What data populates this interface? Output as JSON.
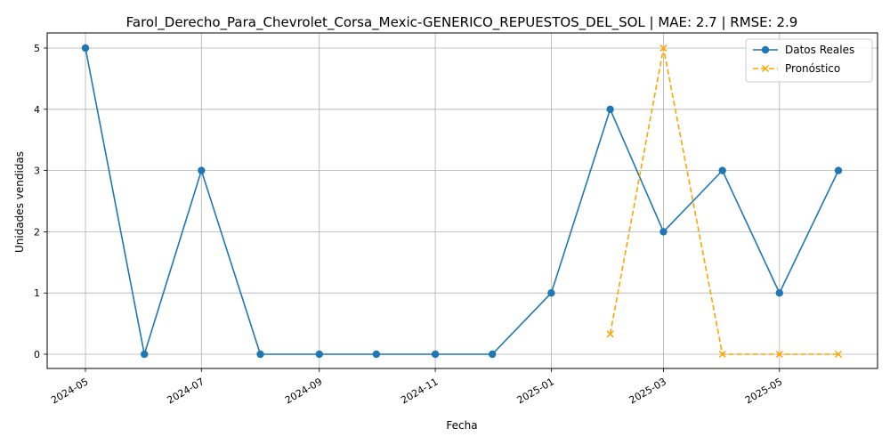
{
  "chart_data": {
    "type": "line",
    "title": "Farol_Derecho_Para_Chevrolet_Corsa_Mexic-GENERICO_REPUESTOS_DEL_SOL | MAE: 2.7 | RMSE: 2.9",
    "xlabel": "Fecha",
    "ylabel": "Unidades vendidas",
    "x_ticks": [
      "2024-05",
      "2024-07",
      "2024-09",
      "2024-11",
      "2025-01",
      "2025-03",
      "2025-05"
    ],
    "y_ticks": [
      0,
      1,
      2,
      3,
      4,
      5
    ],
    "grid": true,
    "legend_position": "top-right",
    "series": [
      {
        "name": "Datos Reales",
        "color": "#1f77b4",
        "line_style": "solid",
        "marker": "circle",
        "points": [
          {
            "x": "2024-05-01",
            "y": 5
          },
          {
            "x": "2024-06-01",
            "y": 0
          },
          {
            "x": "2024-07-01",
            "y": 3
          },
          {
            "x": "2024-08-01",
            "y": 0
          },
          {
            "x": "2024-09-01",
            "y": 0
          },
          {
            "x": "2024-10-01",
            "y": 0
          },
          {
            "x": "2024-11-01",
            "y": 0
          },
          {
            "x": "2024-12-01",
            "y": 0
          },
          {
            "x": "2025-01-01",
            "y": 1
          },
          {
            "x": "2025-02-01",
            "y": 4
          },
          {
            "x": "2025-03-01",
            "y": 2
          },
          {
            "x": "2025-04-01",
            "y": 3
          },
          {
            "x": "2025-05-01",
            "y": 1
          },
          {
            "x": "2025-06-01",
            "y": 3
          }
        ]
      },
      {
        "name": "Pronóstico",
        "color": "#ffa500",
        "line_style": "dashed",
        "marker": "x",
        "points": [
          {
            "x": "2025-02-01",
            "y": 0.33
          },
          {
            "x": "2025-03-01",
            "y": 5
          },
          {
            "x": "2025-04-01",
            "y": 0
          },
          {
            "x": "2025-05-01",
            "y": 0
          },
          {
            "x": "2025-06-01",
            "y": 0
          }
        ]
      }
    ]
  }
}
